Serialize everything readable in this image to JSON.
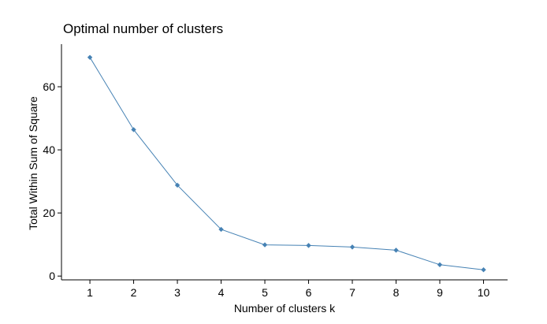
{
  "chart_data": {
    "type": "line",
    "title": "Optimal number of clusters",
    "xlabel": "Number of clusters k",
    "ylabel": "Total Within Sum of Square",
    "x": [
      1,
      2,
      3,
      4,
      5,
      6,
      7,
      8,
      9,
      10
    ],
    "x_tick_labels": [
      "1",
      "2",
      "3",
      "4",
      "5",
      "6",
      "7",
      "8",
      "9",
      "10"
    ],
    "xlim": [
      0.35,
      10.55
    ],
    "y_ticks": [
      0,
      20,
      40,
      60
    ],
    "y_tick_labels": [
      "0",
      "20",
      "40",
      "60"
    ],
    "ylim": [
      -1.2,
      73.5
    ],
    "grid": false,
    "series": [
      {
        "values": [
          69.3,
          46.4,
          28.8,
          14.8,
          9.9,
          9.7,
          9.2,
          8.2,
          3.6,
          2.0
        ],
        "color": "#4682B4"
      }
    ]
  }
}
